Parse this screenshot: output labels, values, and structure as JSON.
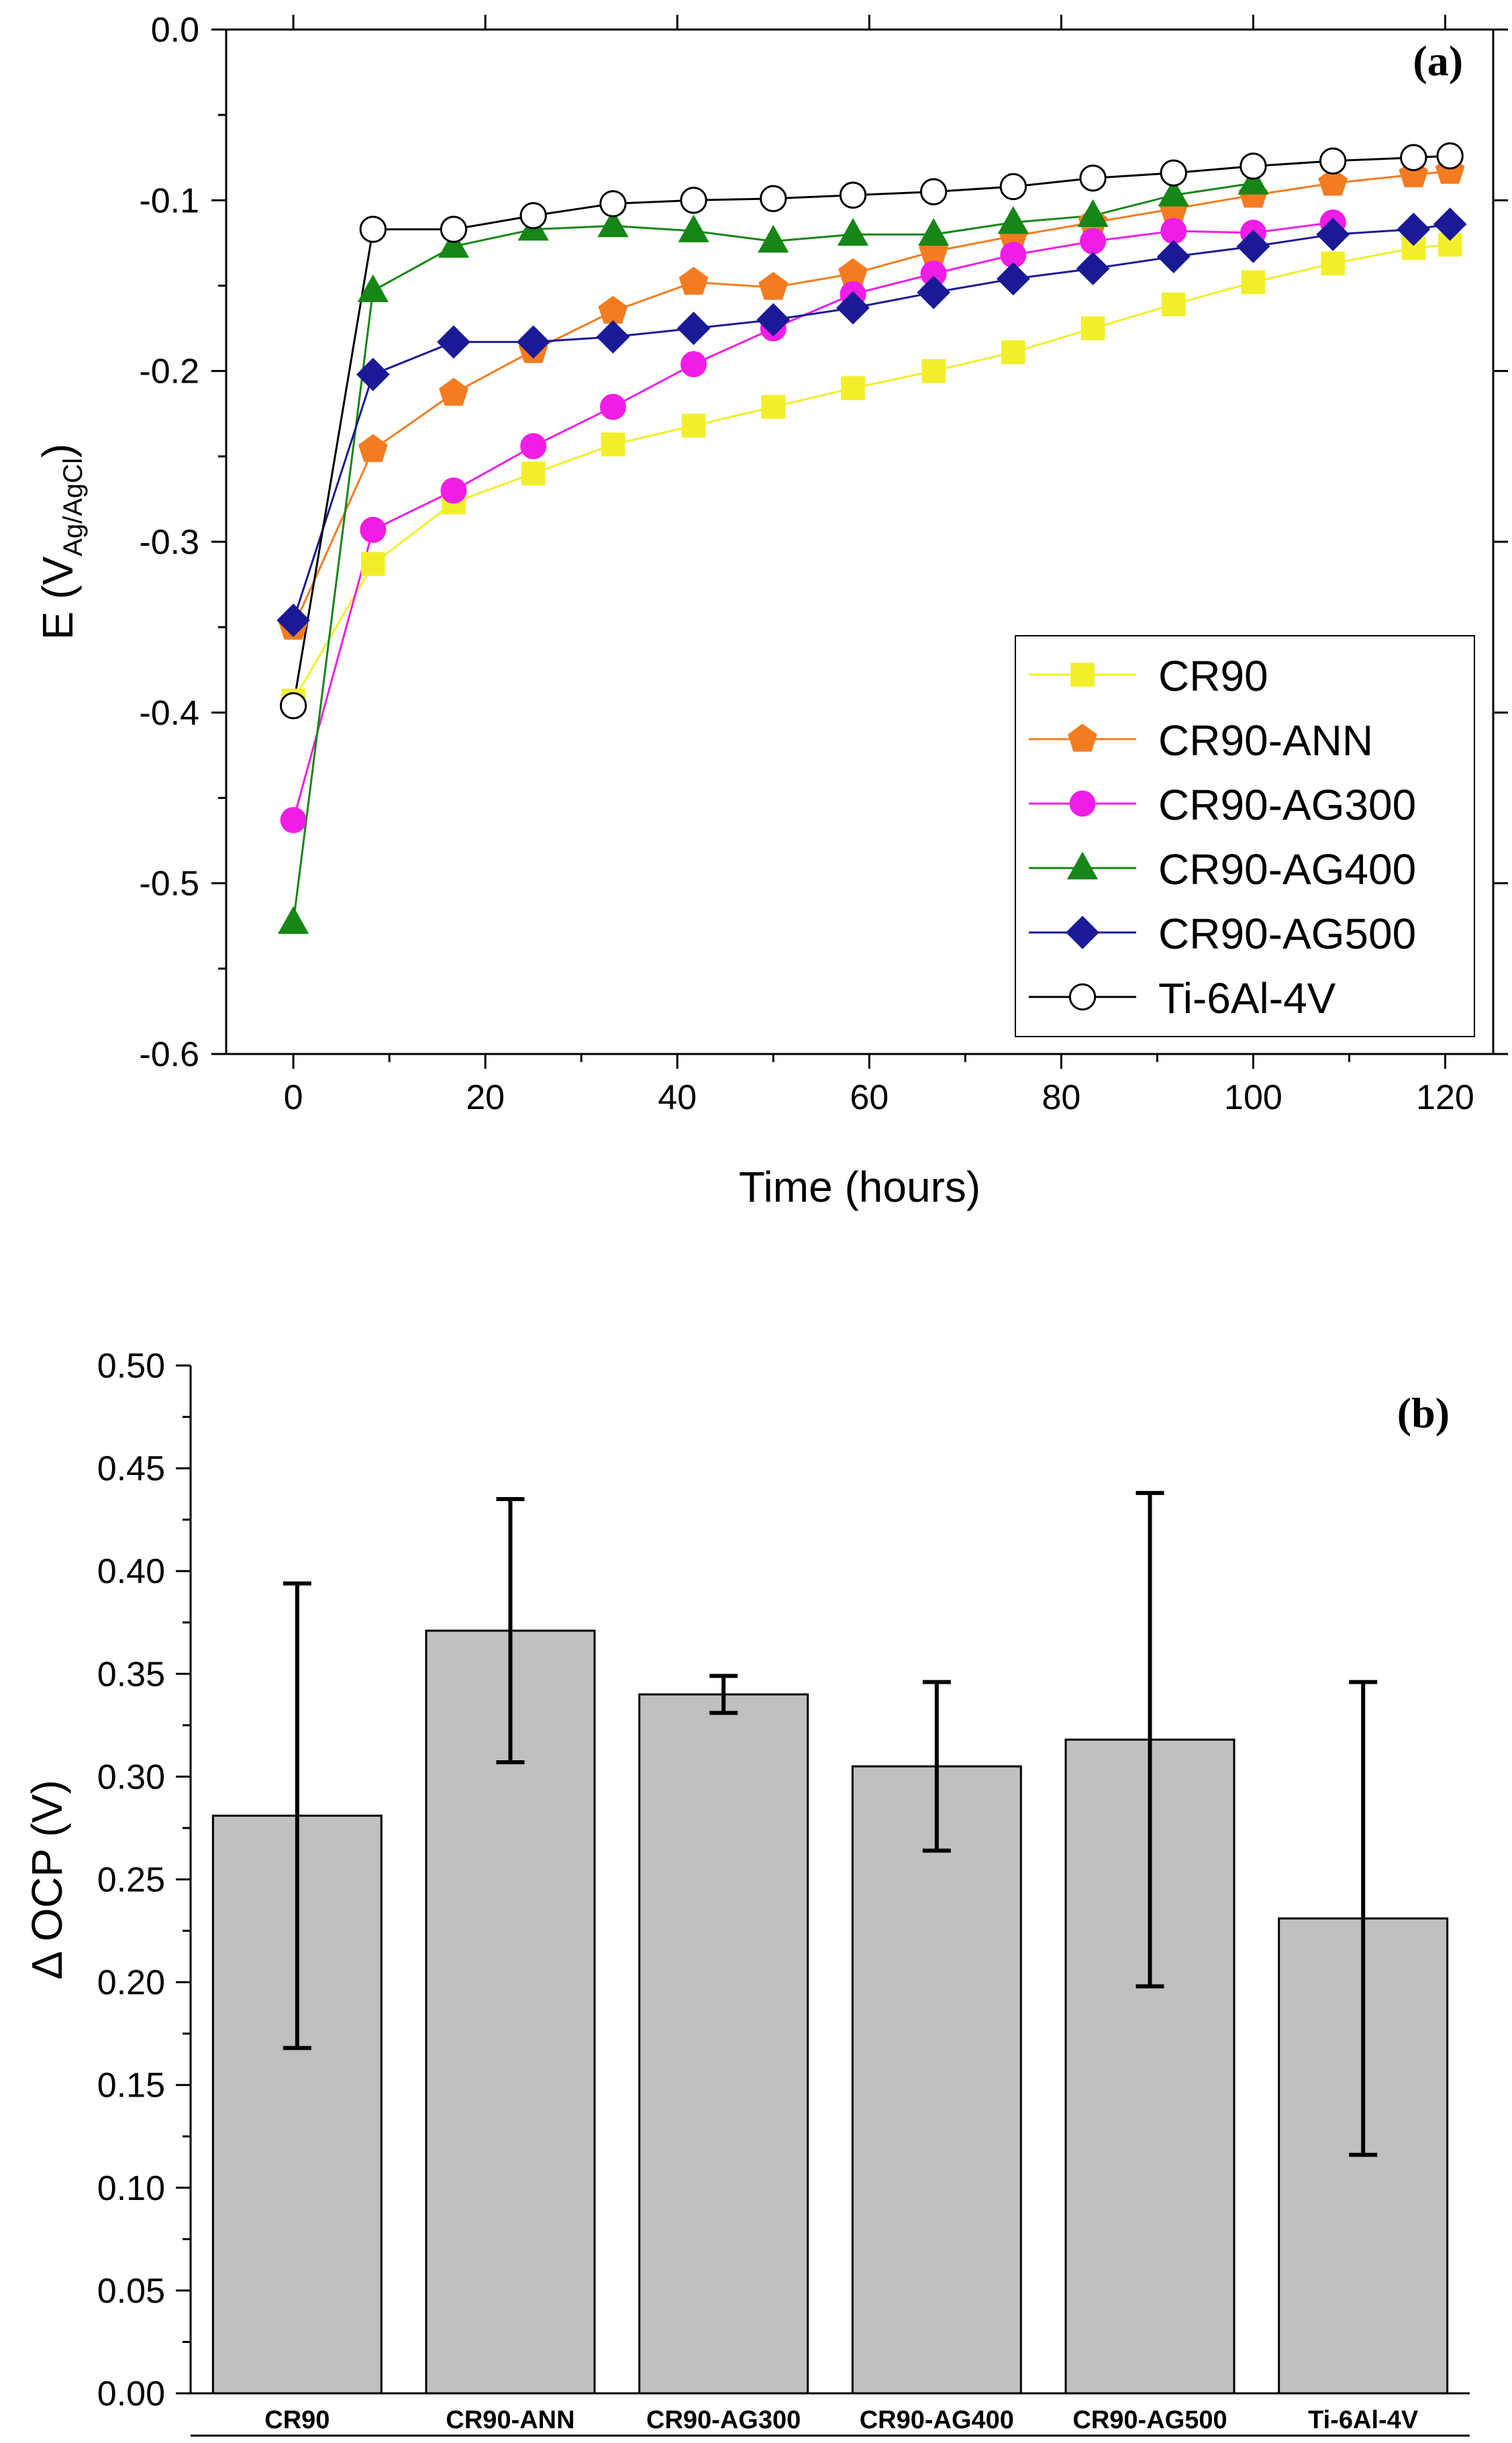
{
  "chart_data": [
    {
      "panel": "(a)",
      "type": "line",
      "xlabel": "Time (hours)",
      "ylabel": "E (V",
      "ylabel_sub": "Ag/AgCl",
      "ylabel_close": ")",
      "xlim": [
        -7,
        125
      ],
      "ylim": [
        -0.6,
        0.0
      ],
      "xticks": [
        0,
        20,
        40,
        60,
        80,
        100,
        120
      ],
      "xtick_labels": [
        "0",
        "20",
        "40",
        "60",
        "80",
        "100",
        "120"
      ],
      "yticks": [
        0.0,
        -0.1,
        -0.2,
        -0.3,
        -0.4,
        -0.5,
        -0.6
      ],
      "ytick_labels": [
        "0.0",
        "-0.1",
        "-0.2",
        "-0.3",
        "-0.4",
        "-0.5",
        "-0.6"
      ],
      "legend_position": "bottom-right",
      "series": [
        {
          "name": "CR90",
          "color": "#f2ef2a",
          "marker": "square",
          "x": [
            0,
            8.3,
            16.7,
            25,
            33.3,
            41.7,
            50,
            58.3,
            66.7,
            75,
            83.3,
            91.7,
            100,
            108.3,
            116.7,
            120.5
          ],
          "y": [
            -0.393,
            -0.313,
            -0.277,
            -0.26,
            -0.243,
            -0.232,
            -0.221,
            -0.21,
            -0.2,
            -0.189,
            -0.175,
            -0.161,
            -0.148,
            -0.137,
            -0.128,
            -0.126
          ]
        },
        {
          "name": "CR90-ANN",
          "color": "#f47c20",
          "marker": "pentagon",
          "x": [
            0,
            8.3,
            16.7,
            25,
            33.3,
            41.7,
            50,
            58.3,
            66.7,
            75,
            83.3,
            91.7,
            100,
            108.3,
            116.7,
            120.5
          ],
          "y": [
            -0.35,
            -0.246,
            -0.213,
            -0.188,
            -0.165,
            -0.148,
            -0.151,
            -0.143,
            -0.13,
            -0.121,
            -0.113,
            -0.105,
            -0.097,
            -0.09,
            -0.085,
            -0.083
          ]
        },
        {
          "name": "CR90-AG300",
          "color": "#f01de6",
          "marker": "circle",
          "x": [
            0,
            8.3,
            16.7,
            25,
            33.3,
            41.7,
            50,
            58.3,
            66.7,
            75,
            83.3,
            91.7,
            100,
            108.3
          ],
          "y": [
            -0.463,
            -0.293,
            -0.27,
            -0.244,
            -0.221,
            -0.196,
            -0.175,
            -0.155,
            -0.143,
            -0.132,
            -0.124,
            -0.118,
            -0.119,
            -0.113
          ]
        },
        {
          "name": "CR90-AG400",
          "color": "#168616",
          "marker": "triangle",
          "x": [
            0,
            8.3,
            16.7,
            25,
            33.3,
            41.7,
            50,
            58.3,
            66.7,
            75,
            83.3,
            91.7,
            100
          ],
          "y": [
            -0.523,
            -0.153,
            -0.127,
            -0.117,
            -0.115,
            -0.118,
            -0.124,
            -0.12,
            -0.12,
            -0.113,
            -0.109,
            -0.097,
            -0.09
          ]
        },
        {
          "name": "CR90-AG500",
          "color": "#1a1a96",
          "marker": "diamond",
          "x": [
            0,
            8.3,
            16.7,
            25,
            33.3,
            41.7,
            50,
            58.3,
            66.7,
            75,
            83.3,
            91.7,
            100,
            108.3,
            116.7,
            120.5
          ],
          "y": [
            -0.346,
            -0.202,
            -0.183,
            -0.183,
            -0.18,
            -0.175,
            -0.17,
            -0.163,
            -0.154,
            -0.146,
            -0.14,
            -0.133,
            -0.127,
            -0.12,
            -0.117,
            -0.114
          ]
        },
        {
          "name": "Ti-6Al-4V",
          "color": "#000000",
          "marker": "open-circle",
          "x": [
            0,
            8.3,
            16.7,
            25,
            33.3,
            41.7,
            50,
            58.3,
            66.7,
            75,
            83.3,
            91.7,
            100,
            108.3,
            116.7,
            120.5
          ],
          "y": [
            -0.396,
            -0.117,
            -0.117,
            -0.109,
            -0.102,
            -0.1,
            -0.099,
            -0.097,
            -0.095,
            -0.092,
            -0.087,
            -0.084,
            -0.08,
            -0.077,
            -0.075,
            -0.074
          ]
        }
      ]
    },
    {
      "panel": "(b)",
      "type": "bar",
      "ylabel": "Δ OCP (V)",
      "xlabel": "",
      "ylim": [
        0.0,
        0.5
      ],
      "yticks": [
        0.0,
        0.05,
        0.1,
        0.15,
        0.2,
        0.25,
        0.3,
        0.35,
        0.4,
        0.45,
        0.5
      ],
      "ytick_labels": [
        "0.00",
        "0.05",
        "0.10",
        "0.15",
        "0.20",
        "0.25",
        "0.30",
        "0.35",
        "0.40",
        "0.45",
        "0.50"
      ],
      "categories": [
        "CR90",
        "CR90-ANN",
        "CR90-AG300",
        "CR90-AG400",
        "CR90-AG500",
        "Ti-6Al-4V"
      ],
      "values": [
        0.281,
        0.371,
        0.34,
        0.305,
        0.318,
        0.231
      ],
      "errors": [
        0.113,
        0.064,
        0.009,
        0.041,
        0.12,
        0.115
      ],
      "bar_color": "#c0c0c0"
    }
  ]
}
